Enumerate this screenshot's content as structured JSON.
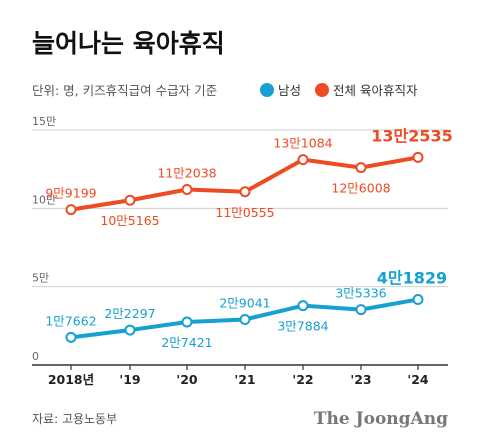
{
  "chart_data": {
    "type": "line",
    "title": "늘어나는 육아휴직",
    "unit_note": "단위: 명, 키즈휴직급여 수급자 기준",
    "categories": [
      "2018년",
      "'19",
      "'20",
      "'21",
      "'22",
      "'23",
      "'24"
    ],
    "y_ticks": [
      {
        "value": 0,
        "label": "0"
      },
      {
        "value": 50000,
        "label": "5만"
      },
      {
        "value": 100000,
        "label": "10만"
      },
      {
        "value": 150000,
        "label": "15만"
      }
    ],
    "ylim": [
      0,
      150000
    ],
    "series": [
      {
        "name": "전체 육아휴직자",
        "color": "#ee4b23",
        "values": [
          99199,
          105165,
          112038,
          110555,
          131084,
          126008,
          132535
        ],
        "labels": [
          "9만9199",
          "10만5165",
          "11만2038",
          "11만0555",
          "13만1084",
          "12만6008",
          "13만2535"
        ],
        "label_pos": [
          "above",
          "below",
          "above",
          "below",
          "above",
          "below",
          "above"
        ]
      },
      {
        "name": "남성",
        "color": "#17a0d0",
        "values": [
          17662,
          22297,
          27421,
          29041,
          37884,
          35336,
          41829
        ],
        "labels": [
          "1만7662",
          "2만2297",
          "2만7421",
          "2만9041",
          "3만7884",
          "3만5336",
          "4만1829"
        ],
        "label_pos": [
          "above",
          "above",
          "below",
          "above",
          "below",
          "above",
          "above"
        ]
      }
    ],
    "legend_position": "top-right",
    "grid": true,
    "source": "자료: 고용노동부",
    "credit": "The JoongAng"
  }
}
